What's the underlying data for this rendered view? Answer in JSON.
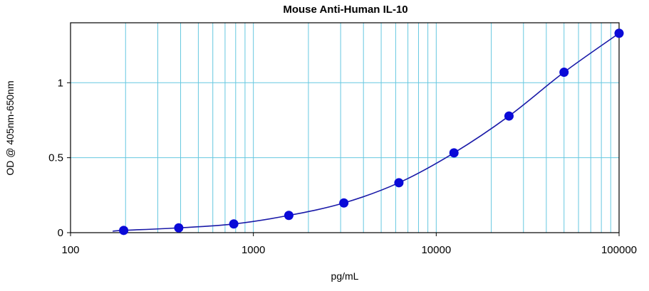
{
  "chart_data": {
    "type": "scatter",
    "title": "Mouse Anti-Human IL-10",
    "xlabel": "pg/mL",
    "ylabel": "OD @ 405nm-650nm",
    "xscale": "log",
    "xlim": [
      100,
      100000
    ],
    "ylim": [
      0,
      1.4
    ],
    "xticks": [
      100,
      1000,
      10000,
      100000
    ],
    "xtick_labels": [
      "100",
      "1000",
      "10000",
      "100000"
    ],
    "yticks": [
      0,
      0.5,
      1
    ],
    "ytick_labels": [
      "0",
      "0.5",
      "1"
    ],
    "grid": true,
    "series": [
      {
        "x": [
          195.3,
          390.6,
          781.3,
          1562.5,
          3125,
          6250,
          12500,
          25000,
          50000,
          100000
        ],
        "y": [
          0.015,
          0.032,
          0.058,
          0.115,
          0.198,
          0.333,
          0.532,
          0.778,
          1.07,
          1.33
        ]
      }
    ],
    "fit_curve": {
      "x": [
        170,
        195.3,
        390.6,
        781.3,
        1562.5,
        3125,
        6250,
        12500,
        25000,
        50000,
        100000
      ],
      "y": [
        0.01,
        0.015,
        0.032,
        0.058,
        0.115,
        0.198,
        0.333,
        0.532,
        0.778,
        1.07,
        1.33
      ]
    }
  },
  "colors": {
    "grid": "#66c8e0",
    "marker": "#0a0ad8",
    "curve": "#1a1aa8",
    "axis": "#000000"
  }
}
